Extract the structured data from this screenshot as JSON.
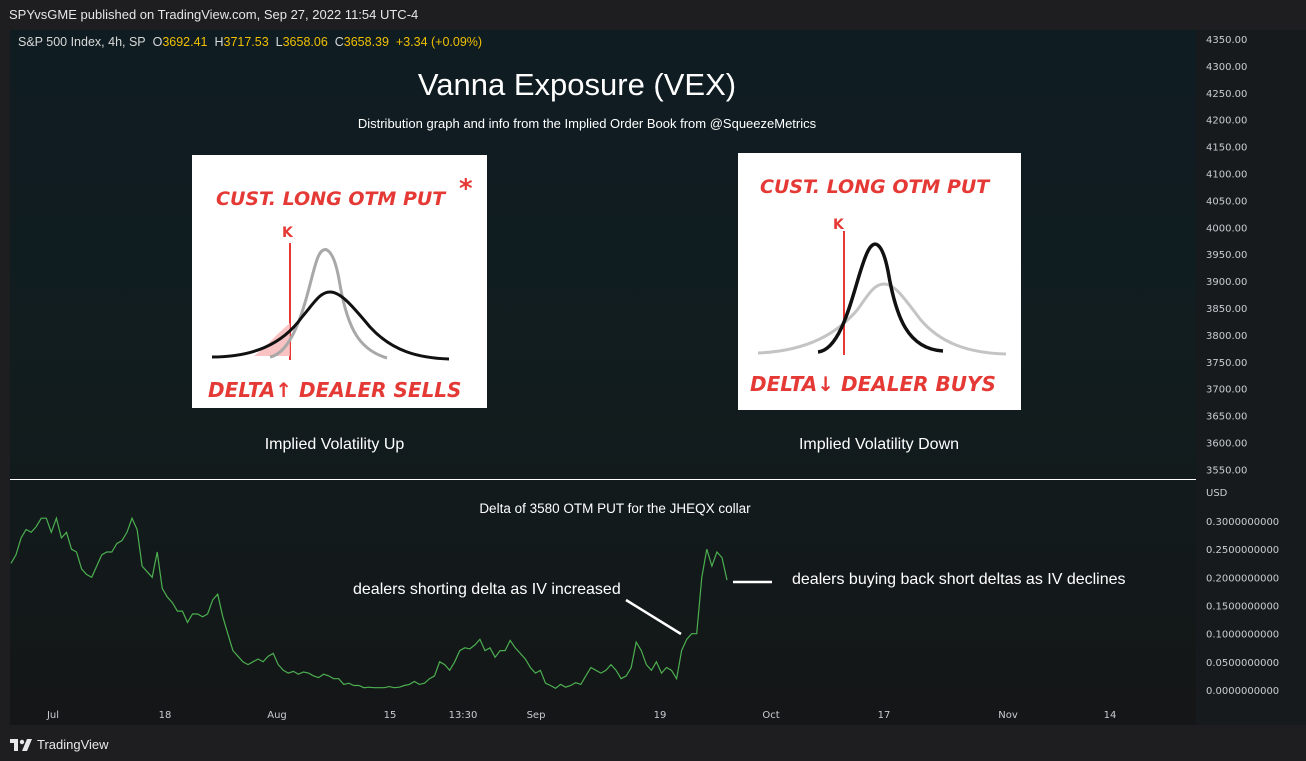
{
  "header": {
    "published": "SPYvsGME published on TradingView.com, Sep 27, 2022 11:54 UTC-4"
  },
  "symbol": {
    "name": "S&P 500 Index, 4h, SP",
    "o_label": "O",
    "o": "3692.41",
    "h_label": "H",
    "h": "3717.53",
    "l_label": "L",
    "l": "3658.06",
    "c_label": "C",
    "c": "3658.39",
    "change": "+3.34 (+0.09%)"
  },
  "overlay": {
    "title": "Vanna Exposure (VEX)",
    "subtitle": "Distribution graph and info from the Implied Order Book from @SqueezeMetrics",
    "left_panel": {
      "heading": "CUST. LONG OTM PUT",
      "star": "*",
      "k": "K",
      "footer": "DELTA↑ DEALER SELLS",
      "caption": "Implied Volatility Up"
    },
    "right_panel": {
      "heading": "CUST. LONG OTM PUT",
      "k": "K",
      "footer": "DELTA↓ DEALER BUYS",
      "caption": "Implied Volatility Down"
    }
  },
  "price_axis": {
    "ticks": [
      "4350.00",
      "4300.00",
      "4250.00",
      "4200.00",
      "4150.00",
      "4100.00",
      "4050.00",
      "4000.00",
      "3950.00",
      "3900.00",
      "3850.00",
      "3800.00",
      "3750.00",
      "3700.00",
      "3650.00",
      "3600.00",
      "3550.00"
    ]
  },
  "delta_axis": {
    "unit": "USD",
    "ticks": [
      "0.3000000000",
      "0.2500000000",
      "0.2000000000",
      "0.1500000000",
      "0.1000000000",
      "0.0500000000",
      "0.0000000000"
    ]
  },
  "time_axis": {
    "ticks": [
      "Jul",
      "18",
      "Aug",
      "15",
      "13:30",
      "Sep",
      "19",
      "Oct",
      "17",
      "Nov",
      "14"
    ]
  },
  "annotations": {
    "subchart_title": "Delta of 3580 OTM PUT for the JHEQX collar",
    "left": "dealers shorting delta as IV increased",
    "right": "dealers buying back short deltas as IV declines"
  },
  "footer": {
    "brand": "TradingView"
  },
  "chart_data": {
    "type": "line",
    "title": "Delta of 3580 OTM PUT for the JHEQX collar",
    "ylabel": "USD",
    "ylim": [
      0,
      0.32
    ],
    "color": "#4caf50",
    "x_ticks": [
      "Jul",
      "18",
      "Aug",
      "15",
      "13:30",
      "Sep",
      "19",
      "Oct",
      "17",
      "Nov",
      "14"
    ],
    "series": [
      {
        "values": [
          0.225,
          0.24,
          0.27,
          0.285,
          0.28,
          0.29,
          0.305,
          0.305,
          0.28,
          0.305,
          0.27,
          0.28,
          0.25,
          0.245,
          0.215,
          0.205,
          0.2,
          0.22,
          0.24,
          0.245,
          0.245,
          0.26,
          0.265,
          0.28,
          0.305,
          0.285,
          0.22,
          0.21,
          0.2,
          0.245,
          0.18,
          0.165,
          0.155,
          0.14,
          0.14,
          0.12,
          0.135,
          0.135,
          0.13,
          0.135,
          0.16,
          0.17,
          0.13,
          0.1,
          0.07,
          0.06,
          0.05,
          0.045,
          0.05,
          0.055,
          0.05,
          0.06,
          0.065,
          0.045,
          0.035,
          0.03,
          0.033,
          0.028,
          0.032,
          0.03,
          0.025,
          0.022,
          0.028,
          0.025,
          0.02,
          0.02,
          0.01,
          0.012,
          0.008,
          0.008,
          0.004,
          0.005,
          0.004,
          0.004,
          0.004,
          0.006,
          0.004,
          0.005,
          0.008,
          0.01,
          0.015,
          0.01,
          0.012,
          0.02,
          0.025,
          0.05,
          0.045,
          0.035,
          0.05,
          0.07,
          0.075,
          0.073,
          0.08,
          0.09,
          0.07,
          0.075,
          0.058,
          0.07,
          0.07,
          0.088,
          0.075,
          0.065,
          0.055,
          0.04,
          0.03,
          0.035,
          0.012,
          0.008,
          0.003,
          0.01,
          0.005,
          0.008,
          0.013,
          0.01,
          0.025,
          0.04,
          0.035,
          0.03,
          0.035,
          0.045,
          0.035,
          0.02,
          0.025,
          0.04,
          0.085,
          0.07,
          0.045,
          0.035,
          0.05,
          0.03,
          0.04,
          0.035,
          0.02,
          0.07,
          0.09,
          0.1,
          0.1,
          0.2,
          0.25,
          0.22,
          0.245,
          0.235,
          0.195
        ]
      }
    ]
  }
}
